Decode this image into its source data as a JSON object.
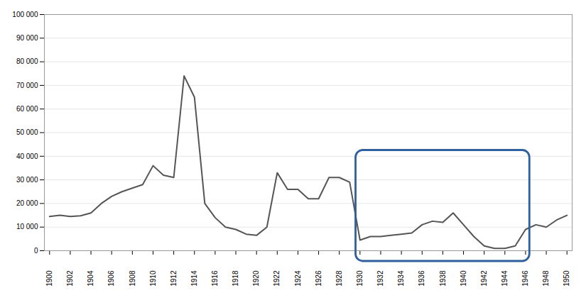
{
  "chart_data": {
    "type": "line",
    "x": [
      1900,
      1901,
      1902,
      1903,
      1904,
      1905,
      1906,
      1907,
      1908,
      1909,
      1910,
      1911,
      1912,
      1913,
      1914,
      1915,
      1916,
      1917,
      1918,
      1919,
      1920,
      1921,
      1922,
      1923,
      1924,
      1925,
      1926,
      1927,
      1928,
      1929,
      1930,
      1931,
      1932,
      1933,
      1934,
      1935,
      1936,
      1937,
      1938,
      1939,
      1940,
      1941,
      1942,
      1943,
      1944,
      1945,
      1946,
      1947,
      1948,
      1949,
      1950
    ],
    "values": [
      14500,
      15000,
      14500,
      14800,
      16000,
      20000,
      23000,
      25000,
      26500,
      28000,
      36000,
      32000,
      31000,
      74000,
      65000,
      20000,
      14000,
      10000,
      9000,
      7000,
      6500,
      10000,
      33000,
      26000,
      26000,
      22000,
      22000,
      31000,
      31000,
      29000,
      4500,
      6000,
      6000,
      6500,
      7000,
      7500,
      11000,
      12500,
      12000,
      16000,
      11000,
      6000,
      2000,
      1000,
      1000,
      2000,
      9000,
      11000,
      10000,
      13000,
      15000
    ],
    "color": "#555555",
    "xlim": [
      1899.5,
      1950.5
    ],
    "xticks": [
      1900,
      1902,
      1904,
      1906,
      1908,
      1910,
      1912,
      1914,
      1916,
      1918,
      1920,
      1922,
      1924,
      1926,
      1928,
      1930,
      1932,
      1934,
      1936,
      1938,
      1940,
      1942,
      1944,
      1946,
      1948,
      1950
    ],
    "ylim": [
      0,
      100000
    ],
    "yticks": [
      0,
      {
        "value": 10000,
        "label": "10 000"
      },
      {
        "value": 20000,
        "label": "20 000"
      },
      {
        "value": 30000,
        "label": "30 000"
      },
      {
        "value": 40000,
        "label": "40 000"
      },
      {
        "value": 50000,
        "label": "50 000"
      },
      {
        "value": 60000,
        "label": "60 000"
      },
      {
        "value": 70000,
        "label": "70 000"
      },
      {
        "value": 80000,
        "label": "80 000"
      },
      {
        "value": 90000,
        "label": "90 000"
      },
      {
        "value": 100000,
        "label": "100 000"
      }
    ],
    "grid": "y",
    "highlight": {
      "x": [
        1929.6,
        1946.4
      ],
      "y": [
        -4500,
        42500
      ],
      "color": "#2e5f9e"
    }
  }
}
